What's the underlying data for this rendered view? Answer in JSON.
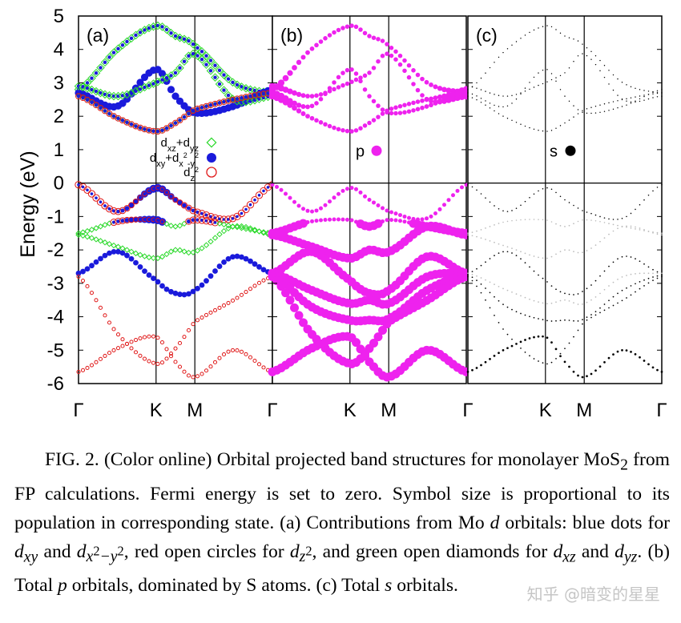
{
  "figure": {
    "ylabel": "Energy (eV)",
    "yticks": [
      "5",
      "4",
      "3",
      "2",
      "1",
      "0",
      "-1",
      "-2",
      "-3",
      "-4",
      "-5",
      "-6"
    ],
    "xticks": [
      "Γ",
      "K",
      "M",
      "Γ"
    ],
    "panels": [
      {
        "label": "(a)"
      },
      {
        "label": "(b)",
        "legend": "p"
      },
      {
        "label": "(c)",
        "legend": "s"
      }
    ],
    "legend_a": {
      "dxz_main": "d",
      "dxz_sub": "xz",
      "dxz_plus": "+d",
      "dxz_sub2": "yz",
      "dxy_main": "d",
      "dxy_sub": "xy",
      "dxy_plus": "+d",
      "dxy_sub2": "x",
      "dxy_sup": "2",
      "dxy_minus": "-y",
      "dxy_sup2": "2",
      "dz2_main": "d",
      "dz2_sub": "z",
      "dz2_sup": "2"
    },
    "colors": {
      "green": "#2bd92b",
      "blue": "#1a1adb",
      "red": "#e01818",
      "magenta": "#ee22ee",
      "black": "#000000",
      "grey": "#bbbbbb"
    }
  },
  "chart_data": {
    "type": "scatter",
    "title": "",
    "ylabel": "Energy (eV)",
    "ylim": [
      -6,
      5
    ],
    "x_kpoints": [
      "Γ",
      "K",
      "M",
      "Γ"
    ],
    "x": [
      0,
      1,
      1.5,
      2.5
    ],
    "fermi_level": 0,
    "bands": [
      {
        "x": [
          0,
          0.5,
          1,
          1.25,
          1.5,
          2,
          2.5
        ],
        "y": [
          2.8,
          4.0,
          4.7,
          4.4,
          4.1,
          3.0,
          2.7
        ]
      },
      {
        "x": [
          0,
          0.5,
          1,
          1.25,
          1.5,
          2,
          2.5
        ],
        "y": [
          2.7,
          2.3,
          3.4,
          2.6,
          2.1,
          2.3,
          2.8
        ]
      },
      {
        "x": [
          0,
          0.5,
          1,
          1.25,
          1.5,
          2,
          2.5
        ],
        "y": [
          2.9,
          2.6,
          3.0,
          3.3,
          3.85,
          2.5,
          2.6
        ]
      },
      {
        "x": [
          0,
          0.5,
          1,
          1.25,
          1.5,
          2,
          2.5
        ],
        "y": [
          2.6,
          1.95,
          1.55,
          1.8,
          2.2,
          2.5,
          2.7
        ]
      },
      {
        "x": [
          0,
          0.5,
          1,
          1.25,
          1.5,
          2,
          2.5
        ],
        "y": [
          -0.05,
          -0.85,
          -0.15,
          -0.5,
          -0.85,
          -1.05,
          -0.05
        ]
      },
      {
        "x": [
          0,
          0.5,
          1,
          1.25,
          1.5,
          2,
          2.5
        ],
        "y": [
          -1.5,
          -1.15,
          -1.1,
          -1.3,
          -1.1,
          -1.3,
          -1.5
        ]
      },
      {
        "x": [
          0,
          0.5,
          1,
          1.25,
          1.5,
          2,
          2.5
        ],
        "y": [
          -1.55,
          -1.9,
          -2.25,
          -2.0,
          -2.05,
          -1.3,
          -1.55
        ]
      },
      {
        "x": [
          0,
          0.5,
          1,
          1.25,
          1.5,
          2,
          2.5
        ],
        "y": [
          -2.7,
          -2.05,
          -2.9,
          -3.3,
          -3.2,
          -2.2,
          -2.7
        ]
      },
      {
        "x": [
          0,
          0.5,
          1,
          1.25,
          1.5,
          2,
          2.5
        ],
        "y": [
          -2.7,
          -3.2,
          -3.6,
          -3.5,
          -3.6,
          -2.8,
          -2.7
        ]
      },
      {
        "x": [
          0,
          0.5,
          1,
          1.25,
          1.5,
          2,
          2.5
        ],
        "y": [
          -2.75,
          -3.7,
          -4.1,
          -4.1,
          -4.05,
          -3.2,
          -2.75
        ]
      },
      {
        "x": [
          0,
          0.5,
          1,
          1.25,
          1.5,
          2,
          2.5
        ],
        "y": [
          -2.8,
          -4.5,
          -5.4,
          -4.95,
          -4.15,
          -3.5,
          -2.8
        ]
      },
      {
        "x": [
          0,
          0.5,
          1,
          1.25,
          1.5,
          2,
          2.5
        ],
        "y": [
          -5.65,
          -4.95,
          -4.6,
          -5.35,
          -5.8,
          -5.0,
          -5.65
        ]
      }
    ],
    "series": [
      {
        "name": "dxz+dyz",
        "panel": "a",
        "color": "#2bd92b",
        "marker": "open-diamond"
      },
      {
        "name": "dxy+dx2-y2",
        "panel": "a",
        "color": "#1a1adb",
        "marker": "filled-circle"
      },
      {
        "name": "dz2",
        "panel": "a",
        "color": "#e01818",
        "marker": "open-circle"
      },
      {
        "name": "p",
        "panel": "b",
        "color": "#ee22ee",
        "marker": "filled-circle"
      },
      {
        "name": "s",
        "panel": "c",
        "color": "#000000",
        "marker": "filled-circle"
      }
    ]
  },
  "caption": {
    "fig": "FIG. 2.",
    "l1": "(Color online) Orbital projected band structures for monolayer MoS",
    "mos_sub": "2",
    "l2": " from FP calculations. Fermi energy is set to zero. Symbol size is proportional to its population in corresponding state. (a) Contributions from Mo ",
    "d": "d",
    "l3": " orbitals: blue dots for ",
    "dxy": "d",
    "dxy_sub": "xy",
    "and1": " and ",
    "dx2": "d",
    "dx2_sub": "x",
    "dx2_sup": "2",
    "dx2_mid": "−y",
    "dx2_sup2": "2",
    "l4": ", red open circles for ",
    "dz": "d",
    "dz_sub": "z",
    "dz_sup": "2",
    "l5": ", and green open diamonds for ",
    "dxz": "d",
    "dxz_sub": "xz",
    "and2": " and ",
    "dyz": "d",
    "dyz_sub": "yz",
    "l6": ". (b) Total ",
    "p": "p",
    "l7": " orbitals, dominated by S atoms. (c) Total ",
    "s": "s",
    "l8": " orbitals."
  },
  "watermark": "知乎 @暗变的星星"
}
